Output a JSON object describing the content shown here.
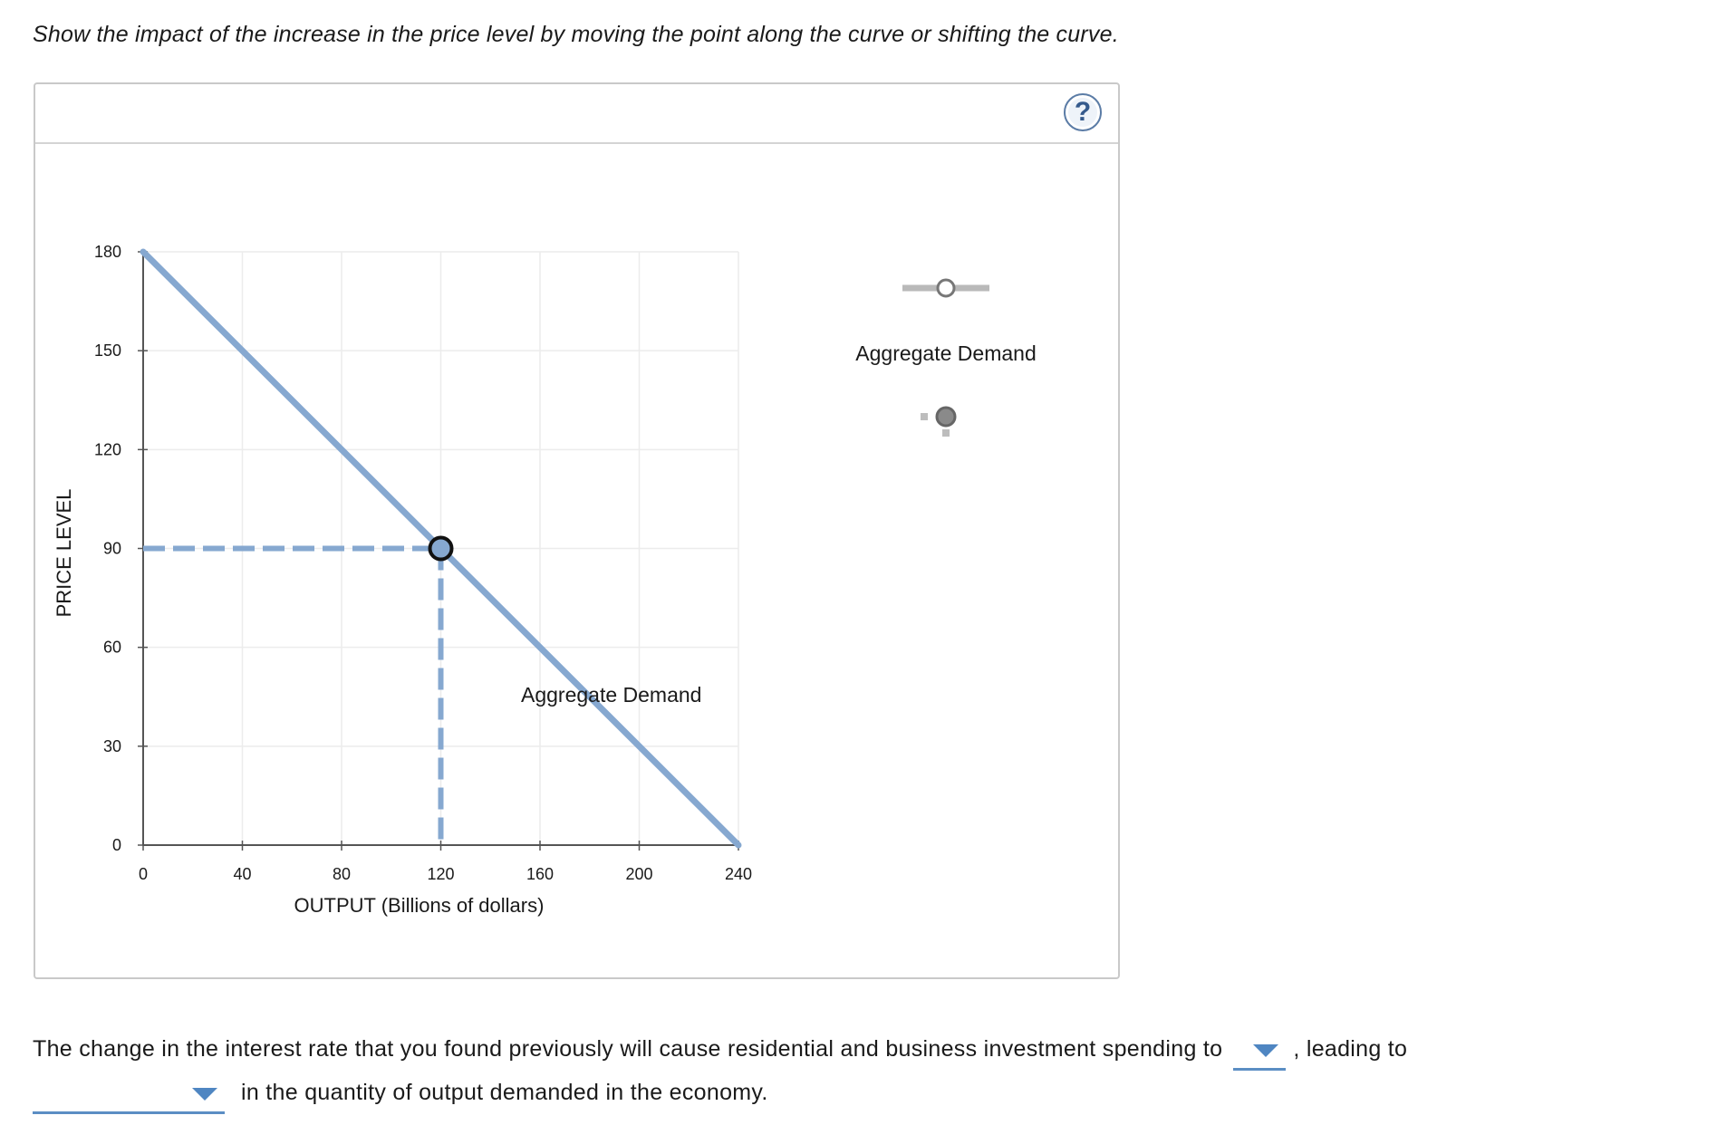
{
  "instruction": "Show the impact of the increase in the price level by moving the point along the curve or shifting the curve.",
  "panel": {
    "help_icon": "question-mark-icon",
    "help_label": "?"
  },
  "chart_data": {
    "type": "line",
    "xlabel": "OUTPUT (Billions of dollars)",
    "ylabel": "PRICE LEVEL",
    "xlim": [
      0,
      240
    ],
    "ylim": [
      0,
      180
    ],
    "x_ticks": [
      0,
      40,
      80,
      120,
      160,
      200,
      240
    ],
    "y_ticks": [
      0,
      30,
      60,
      90,
      120,
      150,
      180
    ],
    "grid": true,
    "series": [
      {
        "name": "Aggregate Demand",
        "color": "#86a8d0",
        "x": [
          0,
          240
        ],
        "y": [
          180,
          0
        ]
      }
    ],
    "point": {
      "x": 120,
      "y": 90
    },
    "legend": {
      "placement": "right",
      "items": [
        {
          "label": "Aggregate Demand",
          "tool": "line-tool-icon"
        },
        {
          "label": "",
          "tool": "point-tool-icon"
        }
      ]
    }
  },
  "question": {
    "part1": "The change in the interest rate that you found previously will cause residential and business investment spending to",
    "part2": ", leading to",
    "part3": "in the quantity of output demanded in the economy.",
    "dropdown1_value": "",
    "dropdown2_value": ""
  }
}
